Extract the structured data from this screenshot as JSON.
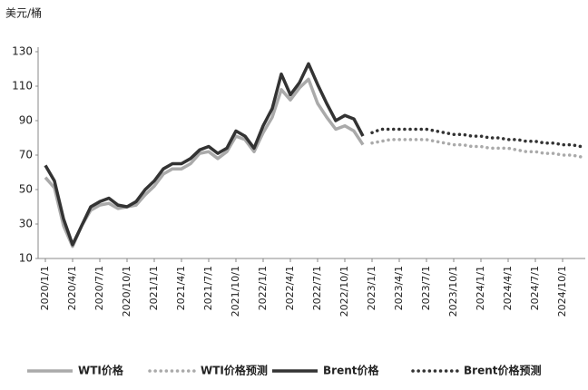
{
  "chart_data": {
    "type": "line",
    "y_label": "美元/桶",
    "categories": [
      "2020/1/1",
      null,
      null,
      "2020/4/1",
      null,
      null,
      "2020/7/1",
      null,
      null,
      "2020/10/1",
      null,
      null,
      "2021/1/1",
      null,
      null,
      "2021/4/1",
      null,
      null,
      "2021/7/1",
      null,
      null,
      "2021/10/1",
      null,
      null,
      "2022/1/1",
      null,
      null,
      "2022/4/1",
      null,
      null,
      "2022/7/1",
      null,
      null,
      "2022/10/1",
      null,
      null,
      "2023/1/1",
      null,
      null,
      "2023/4/1",
      null,
      null,
      "2023/7/1",
      null,
      null,
      "2023/10/1",
      null,
      null,
      "2024/1/1",
      null,
      null,
      "2024/4/1",
      null,
      null,
      "2024/7/1",
      null,
      null,
      "2024/10/1",
      null,
      null
    ],
    "ylim": [
      10,
      130
    ],
    "yticks": [
      10,
      30,
      50,
      70,
      90,
      110,
      130
    ],
    "series": [
      {
        "name": "WTI价格",
        "color": "#aaaaaa",
        "style": "solid",
        "values": [
          57,
          51,
          29,
          17,
          29,
          38,
          41,
          42,
          39,
          40,
          41,
          47,
          52,
          59,
          62,
          62,
          65,
          71,
          72,
          68,
          72,
          81,
          79,
          72,
          83,
          92,
          108,
          102,
          109,
          114,
          100,
          92,
          85,
          87,
          84,
          76,
          null,
          null,
          null,
          null,
          null,
          null,
          null,
          null,
          null,
          null,
          null,
          null,
          null,
          null,
          null,
          null,
          null,
          null,
          null,
          null,
          null,
          null,
          null,
          null
        ]
      },
      {
        "name": "WTI价格预测",
        "color": "#aaaaaa",
        "style": "dotted",
        "values": [
          null,
          null,
          null,
          null,
          null,
          null,
          null,
          null,
          null,
          null,
          null,
          null,
          null,
          null,
          null,
          null,
          null,
          null,
          null,
          null,
          null,
          null,
          null,
          null,
          null,
          null,
          null,
          null,
          null,
          null,
          null,
          null,
          null,
          null,
          null,
          null,
          77,
          78,
          79,
          79,
          79,
          79,
          79,
          78,
          77,
          76,
          76,
          75,
          75,
          74,
          74,
          74,
          73,
          72,
          72,
          71,
          71,
          70,
          70,
          69
        ]
      },
      {
        "name": "Brent价格",
        "color": "#333333",
        "style": "solid",
        "values": [
          64,
          55,
          33,
          18,
          29,
          40,
          43,
          45,
          41,
          40,
          43,
          50,
          55,
          62,
          65,
          65,
          68,
          73,
          75,
          71,
          74,
          84,
          81,
          74,
          87,
          97,
          117,
          105,
          112,
          123,
          111,
          100,
          90,
          93,
          91,
          81,
          null,
          null,
          null,
          null,
          null,
          null,
          null,
          null,
          null,
          null,
          null,
          null,
          null,
          null,
          null,
          null,
          null,
          null,
          null,
          null,
          null,
          null,
          null,
          null
        ]
      },
      {
        "name": "Brent价格预测",
        "color": "#333333",
        "style": "dotted",
        "values": [
          null,
          null,
          null,
          null,
          null,
          null,
          null,
          null,
          null,
          null,
          null,
          null,
          null,
          null,
          null,
          null,
          null,
          null,
          null,
          null,
          null,
          null,
          null,
          null,
          null,
          null,
          null,
          null,
          null,
          null,
          null,
          null,
          null,
          null,
          null,
          null,
          83,
          85,
          85,
          85,
          85,
          85,
          85,
          84,
          83,
          82,
          82,
          81,
          81,
          80,
          80,
          79,
          79,
          78,
          78,
          77,
          77,
          76,
          76,
          75
        ]
      }
    ]
  }
}
